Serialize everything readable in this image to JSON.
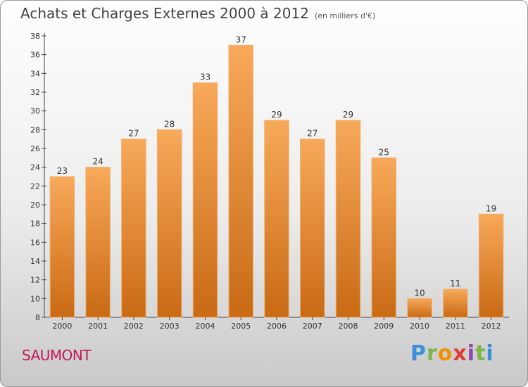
{
  "header": {
    "title": "Achats et Charges Externes 2000 à 2012",
    "subtitle": "(en milliers d'€)"
  },
  "footer": {
    "city": "SAUMONT",
    "logo_text": "Proxiti"
  },
  "colors": {
    "bar_top": "#f8a95a",
    "bar_bottom": "#c96a14",
    "city": "#c2185b"
  },
  "chart_data": {
    "type": "bar",
    "title": "Achats et Charges Externes 2000 à 2012",
    "subtitle": "(en milliers d'€)",
    "categories": [
      "2000",
      "2001",
      "2002",
      "2003",
      "2004",
      "2005",
      "2006",
      "2007",
      "2008",
      "2009",
      "2010",
      "2011",
      "2012"
    ],
    "values": [
      23,
      24,
      27,
      28,
      33,
      37,
      29,
      27,
      29,
      25,
      10,
      11,
      19
    ],
    "ylim": [
      8,
      38
    ],
    "yticks": [
      8,
      10,
      12,
      14,
      16,
      18,
      20,
      22,
      24,
      26,
      28,
      30,
      32,
      34,
      36,
      38
    ],
    "grid": false,
    "xlabel": "",
    "ylabel": ""
  }
}
